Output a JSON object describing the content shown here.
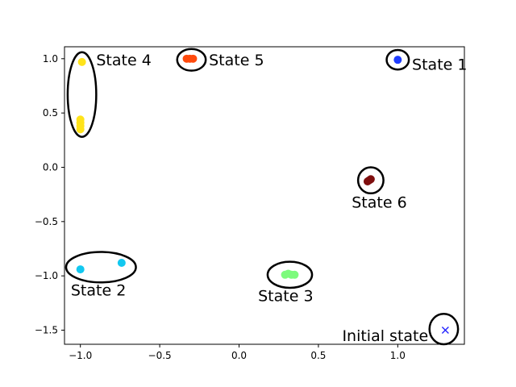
{
  "chart_data": {
    "type": "scatter",
    "title": "",
    "xlabel": "",
    "ylabel": "",
    "xlim": [
      -1.1,
      1.42
    ],
    "ylim": [
      -1.63,
      1.11
    ],
    "grid": false,
    "xticks": [
      -1.0,
      -0.5,
      0.0,
      0.5,
      1.0
    ],
    "xtick_labels": [
      "−1.0",
      "−0.5",
      "0.0",
      "0.5",
      "1.0"
    ],
    "yticks": [
      1.0,
      0.5,
      0.0,
      -0.5,
      -1.0,
      -1.5
    ],
    "ytick_labels": [
      "1.0",
      "0.5",
      "0.0",
      "−0.5",
      "−1.0",
      "−1.5"
    ],
    "points": [
      {
        "group": "state1",
        "x": 1.0,
        "y": 0.99,
        "color": "#1f3dff",
        "marker": "o"
      },
      {
        "group": "state2",
        "x": -1.0,
        "y": -0.94,
        "color": "#12c8f0",
        "marker": "o"
      },
      {
        "group": "state2",
        "x": -0.74,
        "y": -0.88,
        "color": "#12c8f0",
        "marker": "o"
      },
      {
        "group": "state3",
        "x": 0.29,
        "y": -0.99,
        "color": "#7dfb7d",
        "marker": "o"
      },
      {
        "group": "state3",
        "x": 0.31,
        "y": -0.98,
        "color": "#7dfb7d",
        "marker": "o"
      },
      {
        "group": "state3",
        "x": 0.33,
        "y": -0.99,
        "color": "#7dfb7d",
        "marker": "o"
      },
      {
        "group": "state3",
        "x": 0.35,
        "y": -0.99,
        "color": "#7dfb7d",
        "marker": "o"
      },
      {
        "group": "state4",
        "x": -0.99,
        "y": 0.97,
        "color": "#ffe31a",
        "marker": "o"
      },
      {
        "group": "state4",
        "x": -1.0,
        "y": 0.44,
        "color": "#ffe31a",
        "marker": "o"
      },
      {
        "group": "state4",
        "x": -1.0,
        "y": 0.41,
        "color": "#ffe31a",
        "marker": "o"
      },
      {
        "group": "state4",
        "x": -1.0,
        "y": 0.38,
        "color": "#ffe31a",
        "marker": "o"
      },
      {
        "group": "state4",
        "x": -1.0,
        "y": 0.35,
        "color": "#ffe31a",
        "marker": "o"
      },
      {
        "group": "state5",
        "x": -0.33,
        "y": 1.0,
        "color": "#ff4a0d",
        "marker": "o"
      },
      {
        "group": "state5",
        "x": -0.31,
        "y": 1.0,
        "color": "#ff4a0d",
        "marker": "o"
      },
      {
        "group": "state5",
        "x": -0.29,
        "y": 1.0,
        "color": "#ff4a0d",
        "marker": "o"
      },
      {
        "group": "state6",
        "x": 0.81,
        "y": -0.13,
        "color": "#7f0f0f",
        "marker": "o"
      },
      {
        "group": "state6",
        "x": 0.82,
        "y": -0.12,
        "color": "#7f0f0f",
        "marker": "o"
      },
      {
        "group": "state6",
        "x": 0.83,
        "y": -0.11,
        "color": "#7f0f0f",
        "marker": "o"
      },
      {
        "group": "initial",
        "x": 1.3,
        "y": -1.5,
        "color": "#1f1fff",
        "marker": "x"
      }
    ],
    "annotations": [
      {
        "label": "State 1",
        "cx": 1.0,
        "cy": 0.99,
        "rx": 0.07,
        "ry": 0.09,
        "label_x": 1.09,
        "label_y": 0.95
      },
      {
        "label": "State 2",
        "cx": -0.87,
        "cy": -0.92,
        "rx": 0.22,
        "ry": 0.14,
        "label_x": -1.06,
        "label_y": -1.13
      },
      {
        "label": "State 3",
        "cx": 0.32,
        "cy": -0.99,
        "rx": 0.14,
        "ry": 0.12,
        "label_x": 0.12,
        "label_y": -1.18
      },
      {
        "label": "State 4",
        "cx": -0.99,
        "cy": 0.67,
        "rx": 0.09,
        "ry": 0.39,
        "label_x": -0.9,
        "label_y": 0.99
      },
      {
        "label": "State 5",
        "cx": -0.3,
        "cy": 0.99,
        "rx": 0.09,
        "ry": 0.1,
        "label_x": -0.19,
        "label_y": 0.99
      },
      {
        "label": "State 6",
        "cx": 0.83,
        "cy": -0.12,
        "rx": 0.08,
        "ry": 0.12,
        "label_x": 0.71,
        "label_y": -0.32
      },
      {
        "label": "Initial state",
        "cx": 1.29,
        "cy": -1.49,
        "rx": 0.09,
        "ry": 0.14,
        "label_x": 0.65,
        "label_y": -1.55
      }
    ]
  }
}
